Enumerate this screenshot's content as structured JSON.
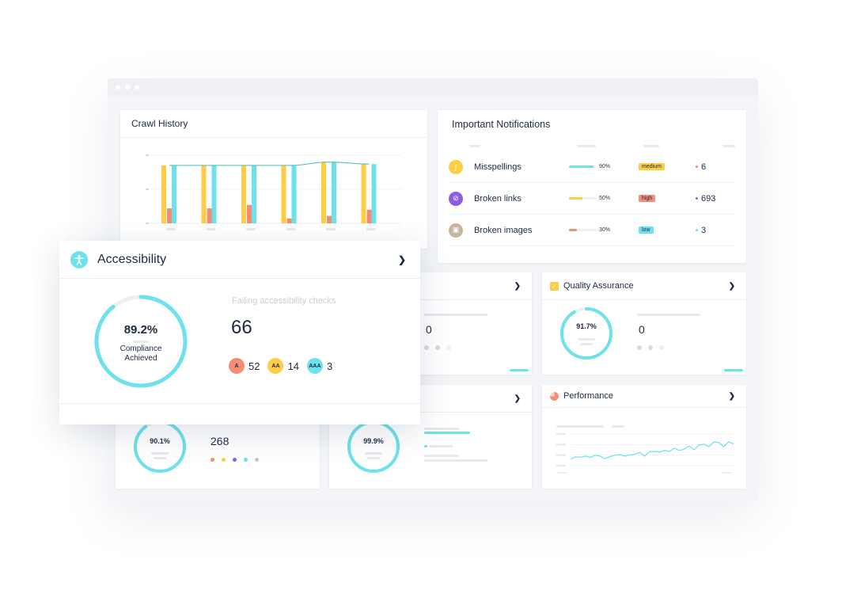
{
  "colors": {
    "cyan": "#6de1ec",
    "yellow": "#fecd45",
    "salmon": "#f58c74",
    "purple": "#8b5fe0",
    "tan": "#c8b59d"
  },
  "crawl_history": {
    "title": "Crawl History",
    "chart_data": {
      "type": "bar",
      "series": [
        {
          "values": [
            0.85,
            0.85,
            0.85,
            0.85,
            0.9,
            0.87
          ],
          "color": "#fecd45"
        },
        {
          "values": [
            0.22,
            0.22,
            0.27,
            0.07,
            0.11,
            0.2
          ],
          "color": "#f58c74"
        },
        {
          "values": [
            0.85,
            0.85,
            0.85,
            0.85,
            0.9,
            0.87
          ],
          "color": "#6de1ec"
        }
      ],
      "line": [
        0.85,
        0.85,
        0.85,
        0.85,
        0.9,
        0.87
      ],
      "ylim": [
        0,
        1
      ]
    }
  },
  "notifications": {
    "title": "Important Notifications",
    "rows": [
      {
        "icon": "misspelling-icon",
        "label": "Misspellings",
        "percent": "90%",
        "progress": 0.9,
        "severity": "medium",
        "count": "6"
      },
      {
        "icon": "broken-link-icon",
        "label": "Broken links",
        "percent": "50%",
        "progress": 0.5,
        "severity": "high",
        "count": "693"
      },
      {
        "icon": "broken-image-icon",
        "label": "Broken images",
        "percent": "30%",
        "progress": 0.3,
        "severity": "low",
        "count": "3"
      }
    ]
  },
  "accessibility": {
    "title": "Accessibility",
    "compliance": "89.2%",
    "compliance_value": 0.892,
    "compliance_label_1": "Compliance",
    "compliance_label_2": "Achieved",
    "failing_label": "Failing accessibility checks",
    "failing_count": "66",
    "levels": [
      {
        "badge": "A",
        "count": "52"
      },
      {
        "badge": "AA",
        "count": "14"
      },
      {
        "badge": "AAA",
        "count": "3"
      }
    ]
  },
  "middle_card": {
    "value": "0"
  },
  "quality_assurance": {
    "title": "Quality Assurance",
    "percent": "91.7%",
    "percent_value": 0.917,
    "value": "0"
  },
  "bottom_left": {
    "percent": "90.1%",
    "percent_value": 0.901,
    "value": "268"
  },
  "bottom_middle": {
    "percent": "99.9%",
    "percent_value": 0.999
  },
  "performance": {
    "title": "Performance",
    "chart_data": {
      "type": "line",
      "values": [
        0.2,
        0.28,
        0.27,
        0.3,
        0.26,
        0.33,
        0.3,
        0.22,
        0.29,
        0.33,
        0.35,
        0.3,
        0.34,
        0.36,
        0.42,
        0.3,
        0.44,
        0.45,
        0.43,
        0.48,
        0.45,
        0.55,
        0.48,
        0.52,
        0.62,
        0.5,
        0.65,
        0.68,
        0.6,
        0.75,
        0.73,
        0.6,
        0.75,
        0.69
      ]
    }
  }
}
